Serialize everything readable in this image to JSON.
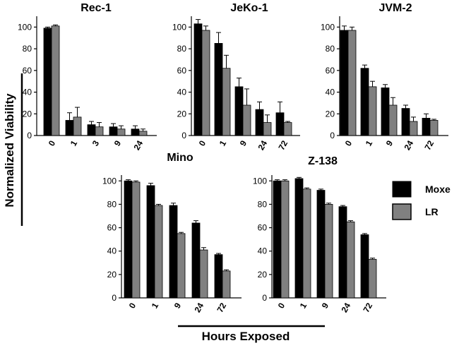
{
  "figure": {
    "ylabel": "Normalized Viability",
    "xlabel": "Hours Exposed",
    "legend": [
      {
        "name": "Moxe",
        "color": "#000000"
      },
      {
        "name": "LR",
        "color": "#808080"
      }
    ]
  },
  "chart_data": [
    {
      "type": "bar",
      "title": "Rec-1",
      "categories": [
        "0",
        "1",
        "3",
        "9",
        "24"
      ],
      "ylim": [
        0,
        110
      ],
      "yticks": [
        0,
        20,
        40,
        60,
        80,
        100
      ],
      "series": [
        {
          "name": "Moxe",
          "values": [
            99,
            14,
            10,
            8,
            6
          ],
          "errors": [
            1,
            7,
            3,
            3,
            3
          ]
        },
        {
          "name": "LR",
          "values": [
            101,
            17,
            8,
            6,
            4
          ],
          "errors": [
            1,
            9,
            4,
            3,
            2
          ]
        }
      ]
    },
    {
      "type": "bar",
      "title": "JeKo-1",
      "categories": [
        "0",
        "1",
        "9",
        "24",
        "72"
      ],
      "ylim": [
        0,
        110
      ],
      "yticks": [
        0,
        20,
        40,
        60,
        80,
        100
      ],
      "series": [
        {
          "name": "Moxe",
          "values": [
            103,
            85,
            45,
            24,
            21
          ],
          "errors": [
            4,
            10,
            8,
            7,
            10
          ]
        },
        {
          "name": "LR",
          "values": [
            97,
            62,
            28,
            12,
            12
          ],
          "errors": [
            4,
            12,
            15,
            7,
            1
          ]
        }
      ]
    },
    {
      "type": "bar",
      "title": "JVM-2",
      "categories": [
        "0",
        "1",
        "9",
        "24",
        "72"
      ],
      "ylim": [
        0,
        110
      ],
      "yticks": [
        0,
        20,
        40,
        60,
        80,
        100
      ],
      "series": [
        {
          "name": "Moxe",
          "values": [
            97,
            62,
            44,
            25,
            16
          ],
          "errors": [
            4,
            3,
            3,
            3,
            4
          ]
        },
        {
          "name": "LR",
          "values": [
            97,
            45,
            28,
            13,
            14
          ],
          "errors": [
            3,
            5,
            7,
            4,
            1
          ]
        }
      ]
    },
    {
      "type": "bar",
      "title": "Mino",
      "categories": [
        "0",
        "1",
        "9",
        "24",
        "72"
      ],
      "ylim": [
        0,
        105
      ],
      "yticks": [
        0,
        20,
        40,
        60,
        80,
        100
      ],
      "series": [
        {
          "name": "Moxe",
          "values": [
            100,
            96,
            79,
            64,
            37
          ],
          "errors": [
            1,
            2,
            2,
            2,
            1
          ]
        },
        {
          "name": "LR",
          "values": [
            99,
            79,
            55,
            41,
            23
          ],
          "errors": [
            1,
            1,
            1,
            2,
            1
          ]
        }
      ]
    },
    {
      "type": "bar",
      "title": "Z-138",
      "categories": [
        "0",
        "1",
        "9",
        "24",
        "72"
      ],
      "ylim": [
        0,
        105
      ],
      "yticks": [
        0,
        20,
        40,
        60,
        80,
        100
      ],
      "series": [
        {
          "name": "Moxe",
          "values": [
            100,
            102,
            92,
            78,
            54
          ],
          "errors": [
            1,
            1,
            1,
            1,
            1
          ]
        },
        {
          "name": "LR",
          "values": [
            100,
            93,
            80,
            65,
            33
          ],
          "errors": [
            1,
            1,
            1,
            1,
            1
          ]
        }
      ]
    }
  ]
}
